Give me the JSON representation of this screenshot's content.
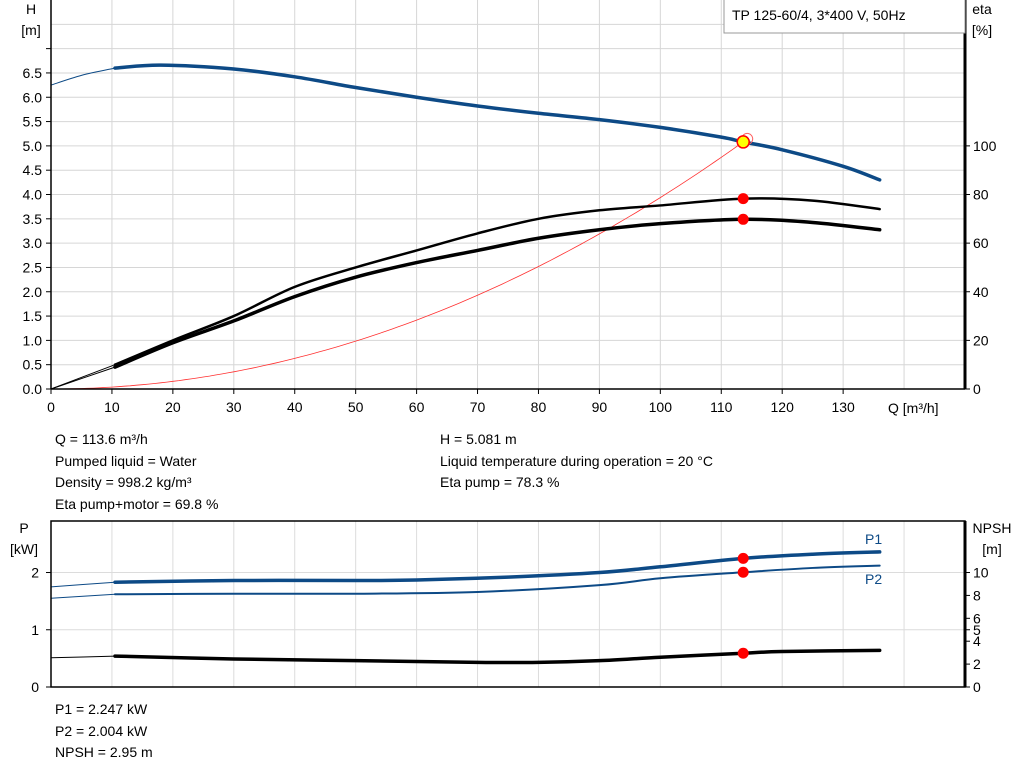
{
  "chart_data": [
    {
      "type": "line",
      "title": "TP 125-60/4, 3*400 V, 50Hz",
      "xlabel": "Q [m³/h]",
      "ylabel": "H [m]",
      "ylabel_right": "eta [%]",
      "xlim": [
        0,
        150
      ],
      "ylim": [
        0,
        8
      ],
      "ylim_right": [
        0,
        160
      ],
      "x_ticks": [
        "0",
        "10",
        "20",
        "30",
        "40",
        "50",
        "60",
        "70",
        "80",
        "90",
        "100",
        "110",
        "120",
        "130"
      ],
      "y_ticks": [
        "0.0",
        "0.5",
        "1.0",
        "1.5",
        "2.0",
        "2.5",
        "3.0",
        "3.5",
        "4.0",
        "4.5",
        "5.0",
        "5.5",
        "6.0",
        "6.5"
      ],
      "y_right_ticks": [
        "0",
        "20",
        "40",
        "60",
        "80",
        "100"
      ],
      "grid": true,
      "series": [
        {
          "name": "H",
          "axis": "left",
          "color": "#0d4a86",
          "x": [
            10.5,
            18,
            30,
            40,
            50,
            60,
            70,
            80,
            90,
            100,
            110,
            113.6,
            120,
            130,
            136
          ],
          "y": [
            6.6,
            6.66,
            6.58,
            6.42,
            6.2,
            6.0,
            5.82,
            5.67,
            5.54,
            5.38,
            5.18,
            5.081,
            4.92,
            4.58,
            4.3
          ],
          "extrapolated": {
            "x": [
              0,
              5,
              10.5
            ],
            "y": [
              6.25,
              6.45,
              6.6
            ]
          }
        },
        {
          "name": "Eta pump",
          "axis": "right",
          "color": "#000000",
          "x": [
            10.5,
            20,
            30,
            40,
            50,
            60,
            70,
            80,
            90,
            100,
            113.6,
            125,
            136
          ],
          "y": [
            10,
            20,
            30,
            42,
            50,
            57,
            64,
            70,
            73.5,
            75.5,
            78.3,
            77.5,
            74
          ],
          "extrapolated": {
            "x": [
              0,
              10.5
            ],
            "y": [
              0,
              10
            ]
          }
        },
        {
          "name": "Eta pump+motor",
          "axis": "right",
          "color": "#000000",
          "x": [
            10.5,
            20,
            30,
            40,
            50,
            60,
            70,
            80,
            90,
            100,
            113.6,
            125,
            136
          ],
          "y": [
            9,
            19,
            28,
            38,
            46,
            52,
            57,
            62,
            65.5,
            68,
            69.8,
            68.5,
            65.5
          ],
          "extrapolated": {
            "x": [
              0,
              10.5
            ],
            "y": [
              0,
              9
            ]
          }
        },
        {
          "name": "System curve",
          "axis": "left",
          "color": "#ff3030",
          "quadratic_through": [
            113.6,
            5.081
          ],
          "x_range": [
            0,
            114.5
          ]
        }
      ],
      "operating_point": {
        "Q": 113.6,
        "H": 5.081,
        "eta_pump": 78.3,
        "eta_pump_motor": 69.8
      }
    },
    {
      "type": "line",
      "xlim": [
        0,
        150
      ],
      "ylabel": "P [kW]",
      "ylabel_right": "NPSH [m]",
      "ylim": [
        0,
        2.9
      ],
      "ylim_right": [
        0,
        14.5
      ],
      "y_ticks": [
        "0",
        "1",
        "2"
      ],
      "y_right_ticks": [
        "0",
        "2",
        "4",
        "5",
        "6",
        "8",
        "10"
      ],
      "series": [
        {
          "name": "P1",
          "axis": "left",
          "color": "#0d4a86",
          "x": [
            10.5,
            30,
            50,
            60,
            75,
            90,
            100,
            113.6,
            125,
            136
          ],
          "y": [
            1.83,
            1.86,
            1.86,
            1.87,
            1.92,
            2.0,
            2.1,
            2.247,
            2.32,
            2.36
          ],
          "extrapolated": {
            "x": [
              0,
              10.5
            ],
            "y": [
              1.75,
              1.83
            ]
          }
        },
        {
          "name": "P2",
          "axis": "left",
          "color": "#0d4a86",
          "x": [
            10.5,
            30,
            50,
            70,
            90,
            100,
            113.6,
            125,
            136
          ],
          "y": [
            1.62,
            1.63,
            1.63,
            1.66,
            1.78,
            1.9,
            2.004,
            2.08,
            2.12
          ],
          "extrapolated": {
            "x": [
              0,
              10.5
            ],
            "y": [
              1.55,
              1.62
            ]
          }
        },
        {
          "name": "NPSH",
          "axis": "right",
          "color": "#000000",
          "x": [
            10.5,
            30,
            50,
            70,
            80,
            90,
            100,
            113.6,
            120,
            136
          ],
          "y": [
            2.7,
            2.45,
            2.3,
            2.15,
            2.15,
            2.3,
            2.6,
            2.95,
            3.1,
            3.2
          ],
          "extrapolated": {
            "x": [
              0,
              10.5
            ],
            "y": [
              2.55,
              2.7
            ]
          }
        }
      ],
      "series_labels": [
        "P1",
        "P2"
      ]
    }
  ],
  "axis_labels": {
    "h": "H",
    "h_unit": "[m]",
    "eta": "eta",
    "eta_unit": "[%]",
    "q": "Q [m³/h]",
    "p": "P",
    "p_unit": "[kW]",
    "npsh": "NPSH",
    "npsh_unit": "[m]"
  },
  "info": {
    "q": "Q = 113.6 m³/h",
    "liquid": "Pumped liquid = Water",
    "density": "Density = 998.2 kg/m³",
    "eta_pm": "Eta pump+motor = 69.8 %",
    "h": "H = 5.081 m",
    "temp": "Liquid temperature during operation = 20 °C",
    "eta_p": "Eta pump = 78.3 %",
    "p1": "P1 = 2.247 kW",
    "p2": "P2 = 2.004 kW",
    "npsh": "NPSH = 2.95 m"
  },
  "colors": {
    "curve_blue": "#0d4a86",
    "marker_red": "#ff0000",
    "op_point_fill": "#ffff00",
    "grid": "#d6d6d6"
  }
}
